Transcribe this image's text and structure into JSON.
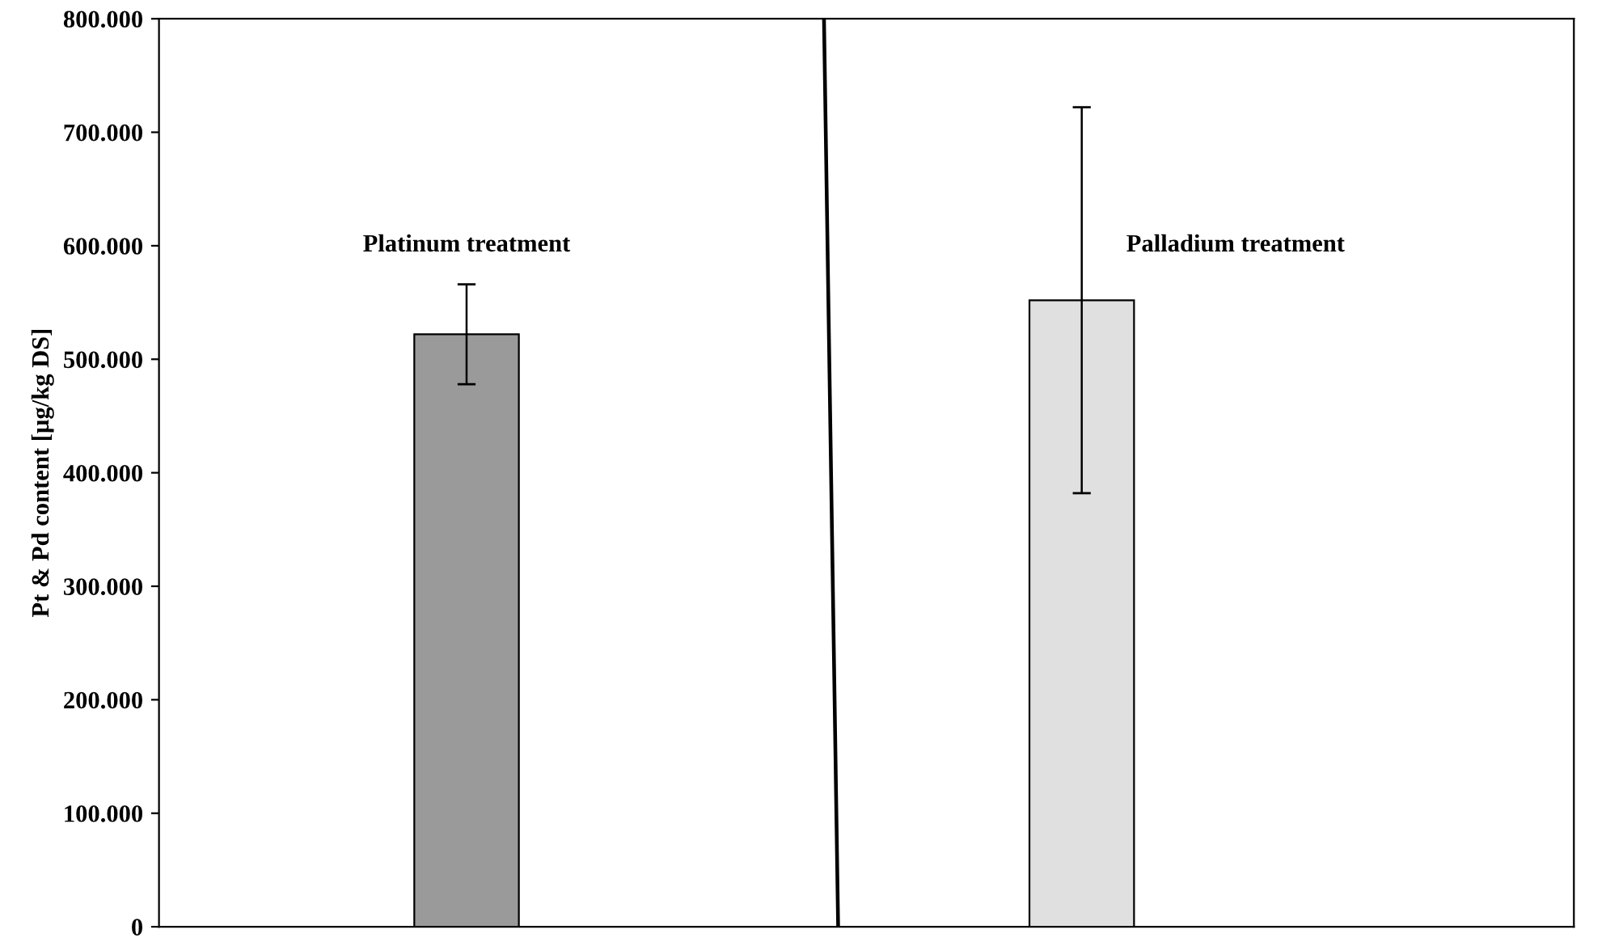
{
  "chart_data": {
    "type": "bar",
    "ylabel": "Pt & Pd content [µg/kg DS]",
    "categories": [
      null,
      null
    ],
    "values": [
      522000,
      552000
    ],
    "errors": [
      44000,
      170000
    ],
    "colors": [
      "#9a9a9a",
      "#e0e0e0"
    ],
    "ylim": [
      0,
      800000
    ],
    "yticks": [
      {
        "value": 0,
        "label": "0"
      },
      {
        "value": 100000,
        "label": "100.000"
      },
      {
        "value": 200000,
        "label": "200.000"
      },
      {
        "value": 300000,
        "label": "300.000"
      },
      {
        "value": 400000,
        "label": "400.000"
      },
      {
        "value": 500000,
        "label": "500.000"
      },
      {
        "value": 600000,
        "label": "600.000"
      },
      {
        "value": 700000,
        "label": "700.000"
      },
      {
        "value": 800000,
        "label": "800.000"
      }
    ],
    "annotations": [
      "Platinum treatment",
      "Palladium treatment"
    ],
    "grid": false,
    "legend": false
  }
}
